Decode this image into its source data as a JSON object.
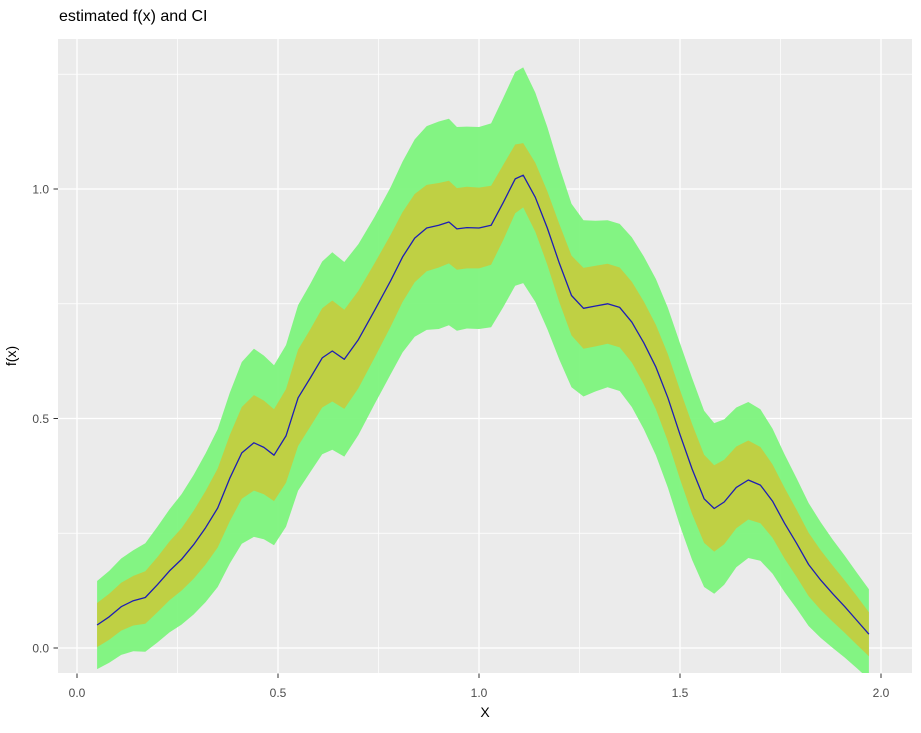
{
  "chart_data": {
    "type": "line",
    "title": "estimated f(x) and CI",
    "xlabel": "X",
    "ylabel": "f(x)",
    "legend": "none",
    "grid": true,
    "panel_bg": "#EBEBEB",
    "grid_color": "#FFFFFF",
    "tick_color": "#333333",
    "tick_label_color": "#4D4D4D",
    "line_color": "#1E1EB4",
    "inner_band_color": "#C4CC3F",
    "outer_band_color": "#7BF47B",
    "xlim": [
      -0.047,
      2.077
    ],
    "ylim": [
      -0.055,
      1.33
    ],
    "x_tick_values": [
      0.0,
      0.5,
      1.0,
      1.5,
      2.0
    ],
    "x_tick_labels": [
      "0.0",
      "0.5",
      "1.0",
      "1.5",
      "2.0"
    ],
    "x_minor_ticks": [
      0.25,
      0.75,
      1.25,
      1.75
    ],
    "y_tick_values": [
      0.0,
      0.5,
      1.0
    ],
    "y_tick_labels": [
      "0.0",
      "0.5",
      "1.0"
    ],
    "y_minor_ticks": [
      0.25,
      0.75,
      1.25
    ],
    "series": [
      {
        "name": "estimated f(x) center line"
      },
      {
        "name": "inner confidence band (center ± w_inner)"
      },
      {
        "name": "outer confidence band (center ± w_outer)"
      }
    ],
    "x": [
      0.05,
      0.08,
      0.11,
      0.14,
      0.17,
      0.2,
      0.23,
      0.26,
      0.29,
      0.32,
      0.35,
      0.38,
      0.41,
      0.44,
      0.465,
      0.49,
      0.52,
      0.55,
      0.58,
      0.61,
      0.635,
      0.665,
      0.7,
      0.74,
      0.78,
      0.81,
      0.84,
      0.87,
      0.9,
      0.925,
      0.945,
      0.97,
      1.0,
      1.03,
      1.06,
      1.09,
      1.11,
      1.14,
      1.17,
      1.2,
      1.23,
      1.26,
      1.29,
      1.32,
      1.35,
      1.38,
      1.41,
      1.44,
      1.47,
      1.5,
      1.53,
      1.56,
      1.585,
      1.61,
      1.64,
      1.67,
      1.7,
      1.73,
      1.76,
      1.79,
      1.82,
      1.85,
      1.88,
      1.91,
      1.94,
      1.97
    ],
    "y": [
      0.05,
      0.068,
      0.09,
      0.103,
      0.11,
      0.138,
      0.168,
      0.193,
      0.225,
      0.262,
      0.305,
      0.37,
      0.425,
      0.447,
      0.437,
      0.42,
      0.462,
      0.545,
      0.588,
      0.632,
      0.647,
      0.629,
      0.672,
      0.735,
      0.8,
      0.852,
      0.893,
      0.915,
      0.921,
      0.928,
      0.913,
      0.916,
      0.915,
      0.921,
      0.97,
      1.022,
      1.03,
      0.982,
      0.915,
      0.838,
      0.768,
      0.74,
      0.745,
      0.75,
      0.742,
      0.71,
      0.665,
      0.612,
      0.545,
      0.465,
      0.39,
      0.325,
      0.304,
      0.318,
      0.35,
      0.366,
      0.355,
      0.32,
      0.272,
      0.228,
      0.182,
      0.148,
      0.118,
      0.09,
      0.06,
      0.03
    ],
    "w_inner": [
      0.048,
      0.05,
      0.052,
      0.054,
      0.057,
      0.06,
      0.064,
      0.068,
      0.074,
      0.08,
      0.086,
      0.094,
      0.1,
      0.104,
      0.102,
      0.1,
      0.102,
      0.105,
      0.106,
      0.108,
      0.11,
      0.108,
      0.106,
      0.103,
      0.1,
      0.098,
      0.096,
      0.094,
      0.092,
      0.09,
      0.089,
      0.089,
      0.088,
      0.086,
      0.082,
      0.075,
      0.07,
      0.075,
      0.08,
      0.085,
      0.087,
      0.088,
      0.088,
      0.087,
      0.087,
      0.088,
      0.09,
      0.092,
      0.095,
      0.097,
      0.098,
      0.096,
      0.094,
      0.092,
      0.089,
      0.086,
      0.083,
      0.08,
      0.077,
      0.073,
      0.069,
      0.065,
      0.061,
      0.057,
      0.053,
      0.048
    ],
    "w_outer": [
      0.096,
      0.1,
      0.105,
      0.11,
      0.118,
      0.126,
      0.134,
      0.142,
      0.152,
      0.162,
      0.172,
      0.186,
      0.198,
      0.205,
      0.2,
      0.196,
      0.198,
      0.202,
      0.205,
      0.21,
      0.215,
      0.212,
      0.208,
      0.204,
      0.204,
      0.208,
      0.215,
      0.222,
      0.226,
      0.225,
      0.222,
      0.22,
      0.22,
      0.222,
      0.228,
      0.233,
      0.235,
      0.228,
      0.22,
      0.21,
      0.2,
      0.192,
      0.186,
      0.182,
      0.182,
      0.185,
      0.188,
      0.192,
      0.196,
      0.199,
      0.198,
      0.192,
      0.186,
      0.18,
      0.174,
      0.17,
      0.165,
      0.158,
      0.15,
      0.142,
      0.134,
      0.126,
      0.118,
      0.111,
      0.104,
      0.098
    ]
  }
}
